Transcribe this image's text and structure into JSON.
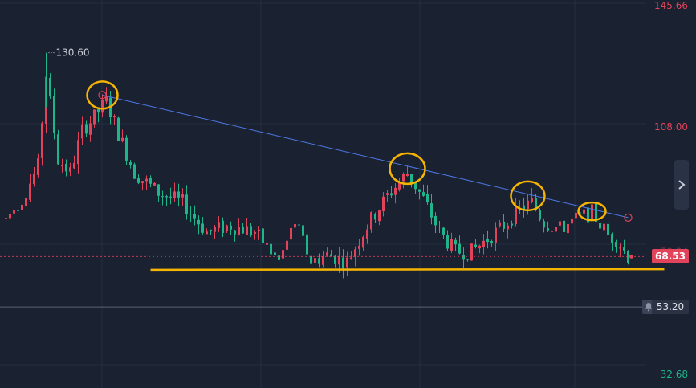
{
  "chart_data": {
    "type": "candlestick",
    "y_axis": {
      "ticks": [
        {
          "value": 145.66,
          "label": "145.66",
          "color": "#e0435a"
        },
        {
          "value": 108.0,
          "label": "108.00",
          "color": "#e0435a"
        },
        {
          "value": 32.68,
          "label": "32.68",
          "color": "#1fb48a"
        }
      ],
      "ylim": [
        32.68,
        145.66
      ]
    },
    "x_axis": {
      "bars": 155,
      "labels": []
    },
    "grid": true,
    "high_label": {
      "value": 130.6,
      "label": "130.60"
    },
    "current_price": {
      "value": 68.53,
      "label": "68.53"
    },
    "alert_price": {
      "value": 53.2,
      "label": "53.20"
    },
    "hidden_price_label": "70.34",
    "trendline": {
      "from": {
        "bar": 24,
        "value": 117.7
      },
      "to": {
        "bar": 155,
        "value": 80.4
      },
      "color": "#4d78e8"
    },
    "support_line": {
      "from": {
        "bar": 36,
        "value": 64.5
      },
      "to": {
        "bar": 164,
        "value": 64.7
      },
      "color": "#f4b400"
    },
    "highlight_circles": [
      {
        "bar": 24,
        "value": 117.7
      },
      {
        "bar": 100,
        "value": 95.3
      },
      {
        "bar": 130,
        "value": 87.0
      },
      {
        "bar": 146,
        "value": 82.3
      }
    ],
    "price_path": [
      {
        "bar": 0,
        "value": 80
      },
      {
        "bar": 4,
        "value": 86
      },
      {
        "bar": 8,
        "value": 96
      },
      {
        "bar": 10,
        "value": 124
      },
      {
        "bar": 13,
        "value": 98
      },
      {
        "bar": 16,
        "value": 94
      },
      {
        "bar": 19,
        "value": 107
      },
      {
        "bar": 22,
        "value": 111
      },
      {
        "bar": 25,
        "value": 116
      },
      {
        "bar": 28,
        "value": 106
      },
      {
        "bar": 32,
        "value": 94
      },
      {
        "bar": 38,
        "value": 88
      },
      {
        "bar": 44,
        "value": 85
      },
      {
        "bar": 50,
        "value": 76
      },
      {
        "bar": 56,
        "value": 78
      },
      {
        "bar": 62,
        "value": 76
      },
      {
        "bar": 68,
        "value": 67
      },
      {
        "bar": 72,
        "value": 79
      },
      {
        "bar": 76,
        "value": 67
      },
      {
        "bar": 80,
        "value": 69
      },
      {
        "bar": 85,
        "value": 67
      },
      {
        "bar": 90,
        "value": 78
      },
      {
        "bar": 95,
        "value": 87
      },
      {
        "bar": 100,
        "value": 94
      },
      {
        "bar": 104,
        "value": 86
      },
      {
        "bar": 108,
        "value": 76
      },
      {
        "bar": 112,
        "value": 70
      },
      {
        "bar": 116,
        "value": 70
      },
      {
        "bar": 120,
        "value": 74
      },
      {
        "bar": 124,
        "value": 78
      },
      {
        "bar": 128,
        "value": 83
      },
      {
        "bar": 131,
        "value": 85
      },
      {
        "bar": 134,
        "value": 79
      },
      {
        "bar": 138,
        "value": 77
      },
      {
        "bar": 142,
        "value": 80
      },
      {
        "bar": 146,
        "value": 82
      },
      {
        "bar": 150,
        "value": 75
      },
      {
        "bar": 152,
        "value": 74
      },
      {
        "bar": 155,
        "value": 68.5
      }
    ],
    "colors": {
      "up": "#e0435a",
      "down": "#1fb48a",
      "grid": "#243041",
      "background": "#1a2130"
    }
  }
}
